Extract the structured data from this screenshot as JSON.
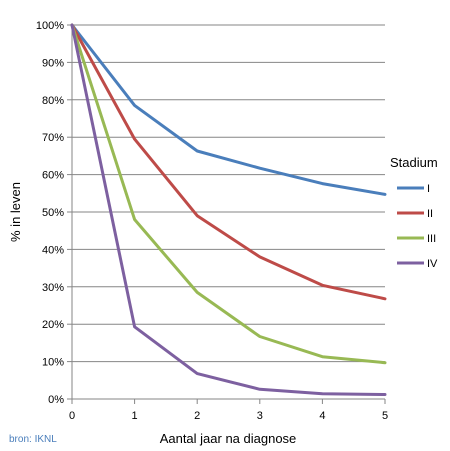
{
  "chart_data": {
    "type": "line",
    "x": [
      0,
      1,
      2,
      3,
      4,
      5
    ],
    "xlabel": "Aantal jaar na diagnose",
    "ylabel": "% in leven",
    "ylim": [
      0,
      100
    ],
    "xlim": [
      0,
      5
    ],
    "x_ticks": [
      "0",
      "1",
      "2",
      "3",
      "4",
      "5"
    ],
    "y_ticks": [
      "0%",
      "10%",
      "20%",
      "30%",
      "40%",
      "50%",
      "60%",
      "70%",
      "80%",
      "90%",
      "100%"
    ],
    "grid": true,
    "legend": {
      "title": "Stadium",
      "position": "right"
    },
    "series": [
      {
        "name": "I",
        "color": "#4a7ebb",
        "values": [
          100,
          78.5,
          66.3,
          61.7,
          57.6,
          54.7
        ]
      },
      {
        "name": "II",
        "color": "#be4b48",
        "values": [
          100,
          69.5,
          49,
          38,
          30.4,
          26.8
        ]
      },
      {
        "name": "III",
        "color": "#98b954",
        "values": [
          100,
          48,
          28.5,
          16.7,
          11.3,
          9.7
        ]
      },
      {
        "name": "IV",
        "color": "#7d60a0",
        "values": [
          100,
          19.3,
          6.8,
          2.6,
          1.4,
          1.2
        ]
      }
    ]
  },
  "source_note": "bron: IKNL"
}
